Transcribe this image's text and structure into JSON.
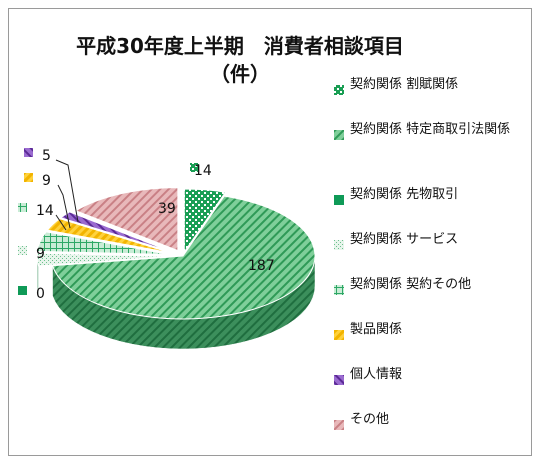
{
  "chart_data": {
    "type": "pie",
    "title": "平成30年度上半期　消費者相談項目",
    "subtitle": "（件）",
    "categories": [
      "契約関係 割賦関係",
      "契約関係 特定商取引法関係",
      "契約関係 先物取引",
      "契約関係 サービス",
      "契約関係 契約その他",
      "製品関係",
      "個人情報",
      "その他"
    ],
    "values": [
      14,
      187,
      0,
      9,
      14,
      9,
      5,
      39
    ],
    "colors": [
      "#1ea05a",
      "#2f9a57",
      "#0f9a57",
      "#b9dfc8",
      "#3fae73",
      "#f7c31e",
      "#7a3fb8",
      "#dda0a3"
    ],
    "data_labels": [
      "14",
      "187",
      "0",
      "9",
      "14",
      "9",
      "5",
      "39"
    ],
    "legend_position": "right",
    "style": "3d-exploded"
  }
}
